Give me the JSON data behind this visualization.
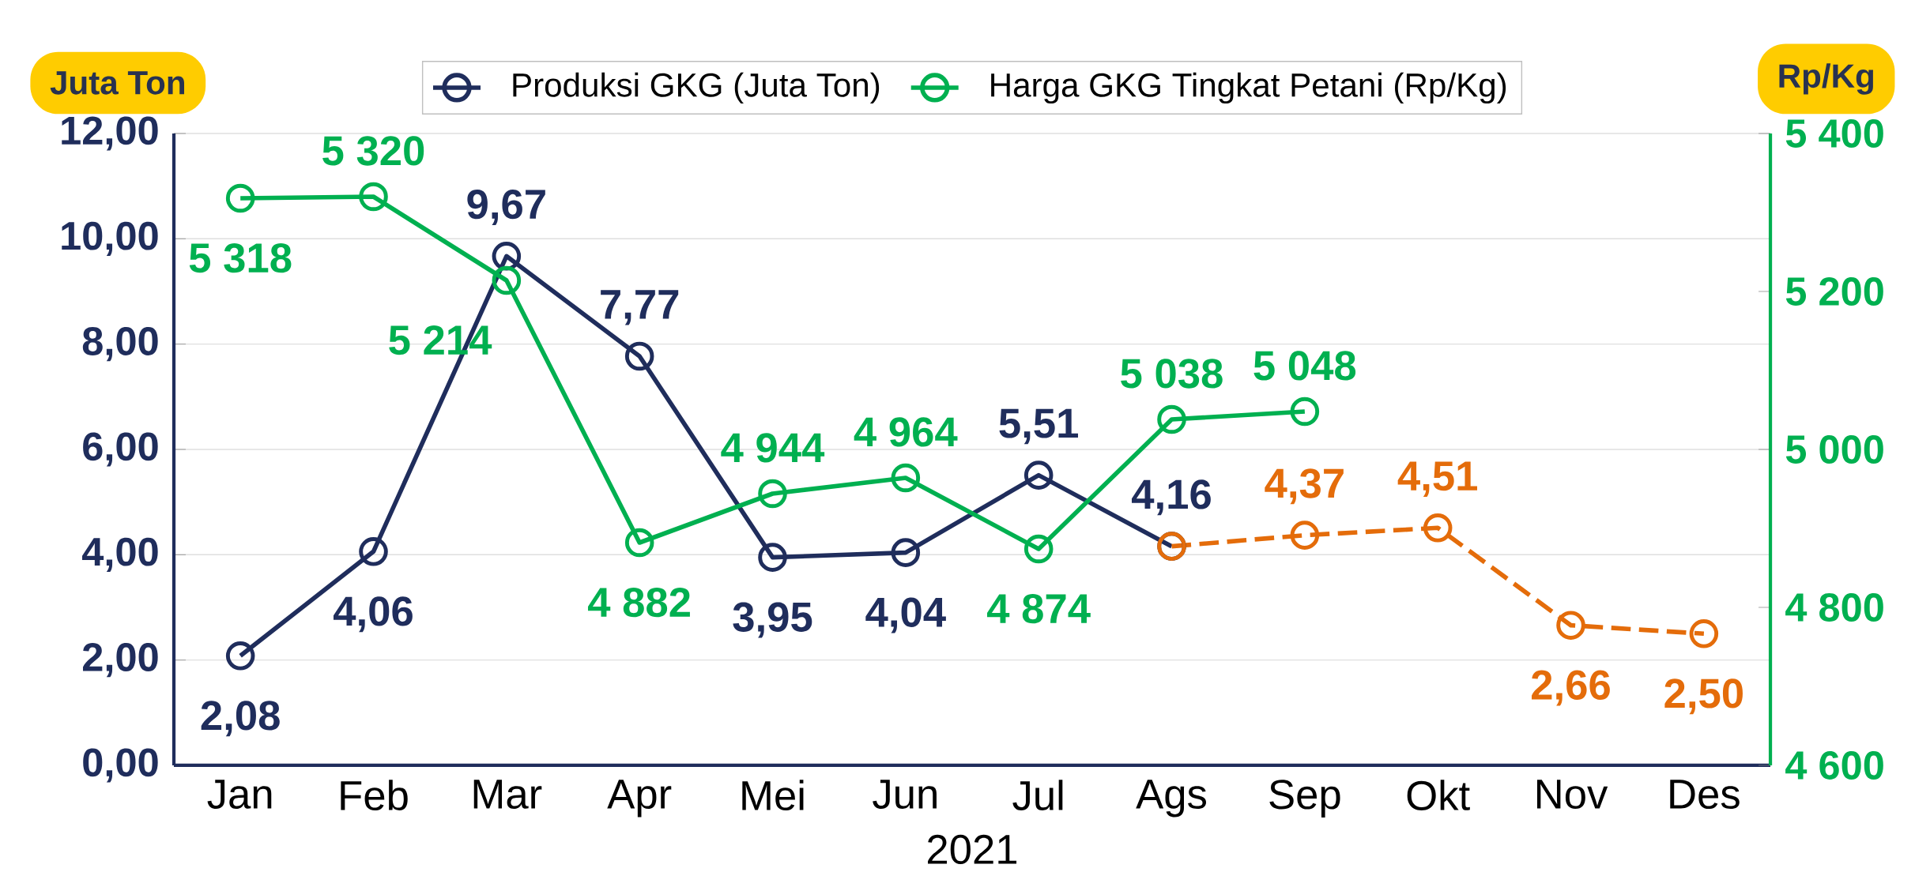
{
  "chart_data": {
    "type": "line",
    "xlabel": "2021",
    "ylabel": "Juta Ton",
    "y2label": "Rp/Kg",
    "categories": [
      "Jan",
      "Feb",
      "Mar",
      "Apr",
      "Mei",
      "Jun",
      "Jul",
      "Ags",
      "Sep",
      "Okt",
      "Nov",
      "Des"
    ],
    "series": [
      {
        "name": "Produksi GKG (Juta Ton)",
        "color": "#1f2d5c",
        "values": [
          2.08,
          4.06,
          9.67,
          7.77,
          3.95,
          4.04,
          5.51,
          4.16,
          null,
          null,
          null,
          null
        ],
        "value_labels": [
          "2,08",
          "4,06",
          "9,67",
          "7,77",
          "3,95",
          "4,04",
          "5,51",
          "4,16",
          null,
          null,
          null,
          null
        ]
      },
      {
        "color": "#e46c0a",
        "line_style": "dashed",
        "values": [
          null,
          null,
          null,
          null,
          null,
          null,
          null,
          4.16,
          4.37,
          4.51,
          2.66,
          2.5
        ],
        "value_labels": [
          null,
          null,
          null,
          null,
          null,
          null,
          null,
          null,
          "4,37",
          "4,51",
          "2,66",
          "2,50"
        ]
      },
      {
        "name": "Harga GKG Tingkat Petani (Rp/Kg)",
        "color": "#00b050",
        "axis": "y2",
        "values": [
          5318,
          5320,
          5214,
          4882,
          4944,
          4964,
          4874,
          5038,
          5048,
          null,
          null,
          null
        ],
        "value_labels": [
          "5 318",
          "5 320",
          "5 214",
          "4 882",
          "4 944",
          "4 964",
          "4 874",
          "5 038",
          "5 048",
          null,
          null,
          null
        ]
      }
    ],
    "ylim": [
      0,
      12
    ],
    "yticks": [
      {
        "value": 0,
        "label": "0,00"
      },
      {
        "value": 2,
        "label": "2,00"
      },
      {
        "value": 4,
        "label": "4,00"
      },
      {
        "value": 6,
        "label": "6,00"
      },
      {
        "value": 8,
        "label": "8,00"
      },
      {
        "value": 10,
        "label": "10,00"
      },
      {
        "value": 12,
        "label": "12,00"
      }
    ],
    "y2lim": [
      4600,
      5400
    ],
    "y2ticks": [
      {
        "value": 4600,
        "label": "4 600"
      },
      {
        "value": 4800,
        "label": "4 800"
      },
      {
        "value": 5000,
        "label": "5 000"
      },
      {
        "value": 5200,
        "label": "5 200"
      },
      {
        "value": 5400,
        "label": "5 400"
      }
    ],
    "grid": "y",
    "legend": "top",
    "marker": "circle",
    "line_style": "solid"
  }
}
